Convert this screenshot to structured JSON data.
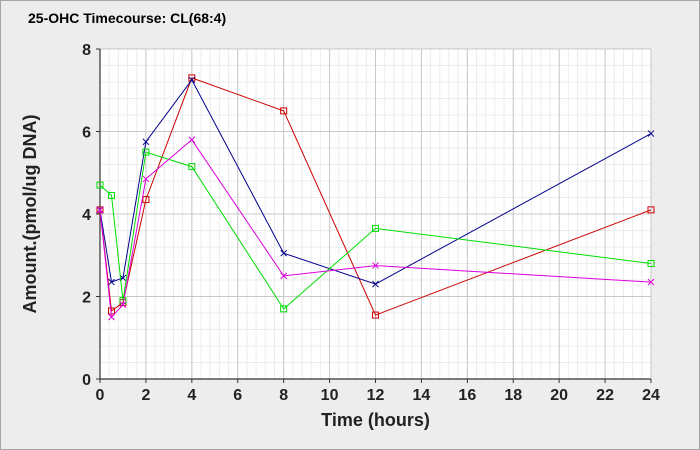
{
  "chart_data": {
    "type": "line",
    "title": "25-OHC Timecourse: CL(68:4)",
    "xlabel": "Time (hours)",
    "ylabel": "Amount.(pmol/ug DNA)",
    "xlim": [
      0,
      24
    ],
    "ylim": [
      0,
      8
    ],
    "xticks": [
      0,
      2,
      4,
      6,
      8,
      10,
      12,
      14,
      16,
      18,
      20,
      22,
      24
    ],
    "yticks": [
      0,
      2,
      4,
      6,
      8
    ],
    "grid": true,
    "legend": "none",
    "series": [
      {
        "color": "#cc0000",
        "marker": "square",
        "x": [
          0,
          0.5,
          1,
          2,
          4,
          8,
          12,
          24
        ],
        "y": [
          4.1,
          1.65,
          1.85,
          4.35,
          7.3,
          6.5,
          1.55,
          4.1
        ]
      },
      {
        "color": "#00008b",
        "marker": "x",
        "x": [
          0,
          0.5,
          1,
          2,
          4,
          8,
          12,
          24
        ],
        "y": [
          4.1,
          2.35,
          2.45,
          5.75,
          7.25,
          3.05,
          2.3,
          5.95
        ]
      },
      {
        "color": "#00dd00",
        "marker": "square",
        "x": [
          0,
          0.5,
          1,
          2,
          4,
          8,
          12,
          24
        ],
        "y": [
          4.7,
          4.45,
          1.9,
          5.5,
          5.15,
          1.7,
          3.65,
          2.8
        ]
      },
      {
        "color": "#dd00dd",
        "marker": "x",
        "x": [
          0,
          0.5,
          1,
          2,
          4,
          8,
          12,
          24
        ],
        "y": [
          4.1,
          1.5,
          1.8,
          4.85,
          5.8,
          2.5,
          2.75,
          2.35
        ]
      }
    ]
  }
}
